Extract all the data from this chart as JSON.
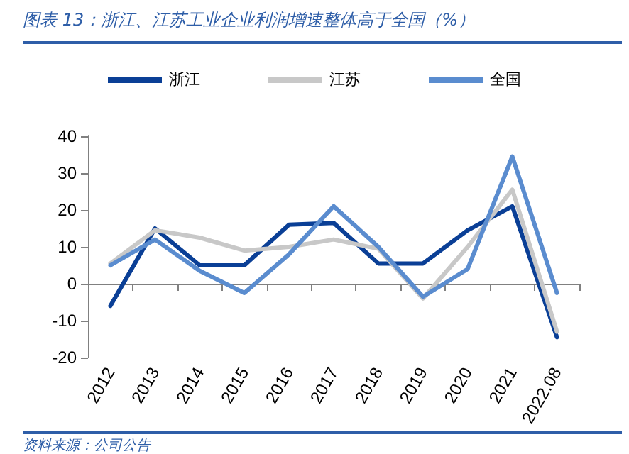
{
  "chart_data": {
    "type": "line",
    "title": "图表 13：浙江、江苏工业企业利润增速整体高于全国（%）",
    "categories": [
      "2012",
      "2013",
      "2014",
      "2015",
      "2016",
      "2017",
      "2018",
      "2019",
      "2020",
      "2021",
      "2022.08"
    ],
    "series": [
      {
        "name": "浙江",
        "color": "#0a3f96",
        "values": [
          -6,
          15,
          5,
          5,
          16,
          16.5,
          5.5,
          5.5,
          14.5,
          21,
          -14.5
        ]
      },
      {
        "name": "江苏",
        "color": "#c8c8c8",
        "values": [
          5.5,
          14.5,
          12.5,
          9,
          10,
          12,
          9.5,
          -4,
          10,
          25.5,
          -13
        ]
      },
      {
        "name": "全国",
        "color": "#5a8ccf",
        "values": [
          5,
          12,
          3.5,
          -2.5,
          8,
          21,
          10,
          -3.5,
          4,
          34.5,
          -2.5
        ]
      }
    ],
    "ylim": [
      -20,
      40
    ],
    "yticks": [
      -20,
      -10,
      0,
      10,
      20,
      30,
      40
    ],
    "legend": "top",
    "marker": "none",
    "line_style": "solid",
    "annotations": [
      "资料来源：公司公告"
    ]
  }
}
